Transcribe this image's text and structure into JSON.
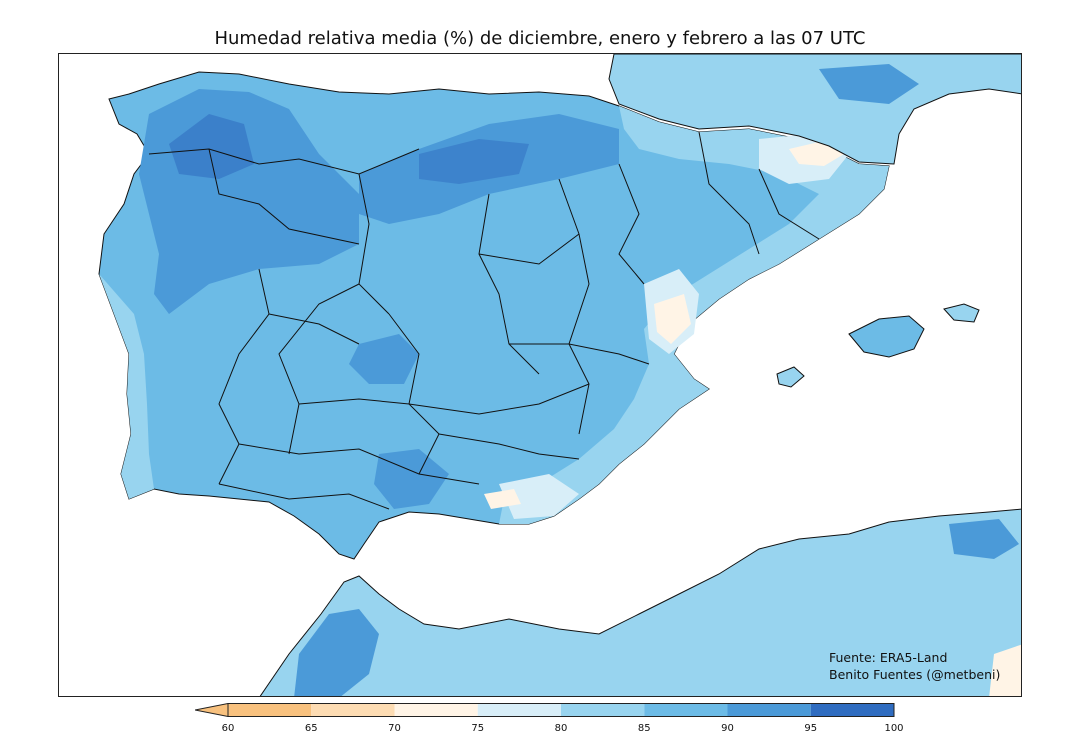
{
  "title": "Humedad relativa media (%) de diciembre, enero y febrero a las 07 UTC",
  "credits": {
    "source": "Fuente: ERA5-Land",
    "author": "Benito Fuentes (@metbeni)"
  },
  "colorbar": {
    "ticks": [
      "60",
      "65",
      "70",
      "75",
      "80",
      "85",
      "90",
      "95",
      "100"
    ],
    "colors": [
      "#f8c17e",
      "#fddcb3",
      "#fff4e6",
      "#d8eef8",
      "#98d4ef",
      "#6cbbe6",
      "#4b9ad8",
      "#2f6cc0"
    ],
    "extend": "min"
  },
  "palette": {
    "sea": "#ffffff",
    "base_land": "#6cbbe6",
    "humid": "#4b9ad8",
    "very_humid": "#2f6cc0",
    "coastal": "#98d4ef",
    "dry_coast": "#d8eef8",
    "dry": "#fff4e6"
  }
}
